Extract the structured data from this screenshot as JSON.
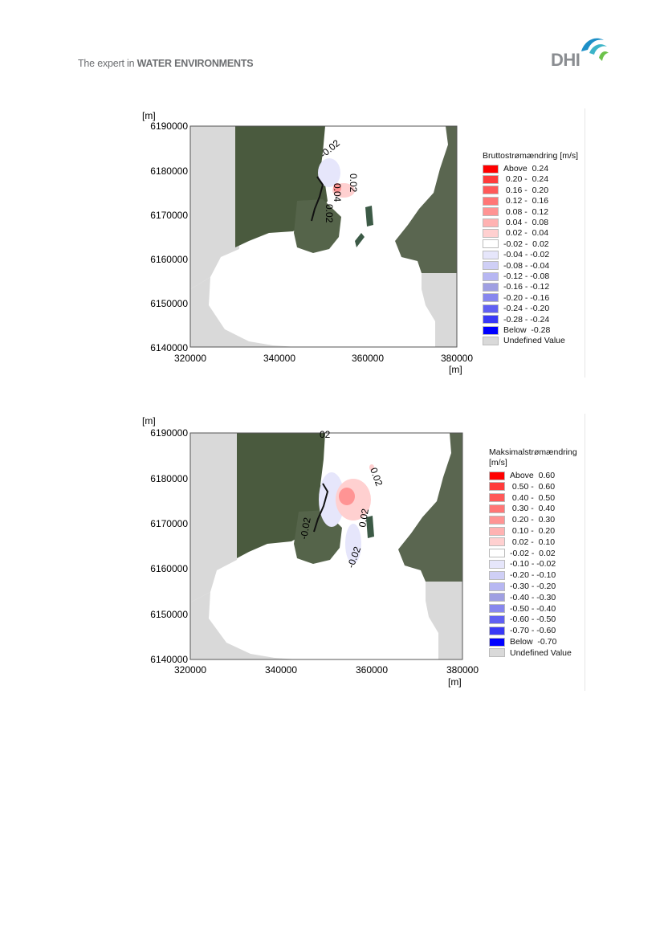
{
  "header": {
    "tagline_prefix": "The expert in ",
    "tagline_bold": "WATER ENVIRONMENTS",
    "logo_text": "DHI"
  },
  "colors": {
    "water": "#ffffff",
    "land_undefined": "#d9d9d9",
    "satellite_dark": "#3d4a35",
    "satellite_mid": "#5b6a4e"
  },
  "maps": [
    {
      "y_unit": "[m]",
      "x_unit": "[m]",
      "y_ticks": [
        "6190000",
        "6180000",
        "6170000",
        "6160000",
        "6150000",
        "6140000"
      ],
      "x_ticks": [
        "320000",
        "340000",
        "360000",
        "380000"
      ],
      "contour_labels": [
        "-0.02",
        "0.02",
        "0.04",
        "0.02"
      ],
      "legend": {
        "title_lines": [
          "Bruttostrømændring [m/s]"
        ],
        "items": [
          {
            "label": "Above  0.24",
            "color": "#ff0000"
          },
          {
            "label": " 0.20 -  0.24",
            "color": "#ff3b3b"
          },
          {
            "label": " 0.16 -  0.20",
            "color": "#ff5959"
          },
          {
            "label": " 0.12 -  0.16",
            "color": "#ff7676"
          },
          {
            "label": " 0.08 -  0.12",
            "color": "#ff9494"
          },
          {
            "label": " 0.04 -  0.08",
            "color": "#ffb2b2"
          },
          {
            "label": " 0.02 -  0.04",
            "color": "#ffd0d0"
          },
          {
            "label": "-0.02 -  0.02",
            "color": "#ffffff"
          },
          {
            "label": "-0.04 - -0.02",
            "color": "#e6e6fb"
          },
          {
            "label": "-0.08 - -0.04",
            "color": "#cfcff6"
          },
          {
            "label": "-0.12 - -0.08",
            "color": "#b7b7f2"
          },
          {
            "label": "-0.16 - -0.12",
            "color": "#9f9fe2"
          },
          {
            "label": "-0.20 - -0.16",
            "color": "#8787ee"
          },
          {
            "label": "-0.24 - -0.20",
            "color": "#6060f2"
          },
          {
            "label": "-0.28 - -0.24",
            "color": "#3939f6"
          },
          {
            "label": "Below  -0.28",
            "color": "#0000ff"
          },
          {
            "label": "Undefined Value",
            "color": "#d9d9d9"
          }
        ]
      }
    },
    {
      "y_unit": "[m]",
      "x_unit": "[m]",
      "y_ticks": [
        "6190000",
        "6180000",
        "6170000",
        "6160000",
        "6150000",
        "6140000"
      ],
      "x_ticks": [
        "320000",
        "340000",
        "360000",
        "380000"
      ],
      "contour_labels": [
        "02",
        "0.02",
        "0.02",
        "-0.02",
        "-0.02"
      ],
      "legend": {
        "title_lines": [
          "Maksimalstrømændring",
          "[m/s]"
        ],
        "items": [
          {
            "label": "Above  0.60",
            "color": "#ff0000"
          },
          {
            "label": " 0.50 -  0.60",
            "color": "#ff3b3b"
          },
          {
            "label": " 0.40 -  0.50",
            "color": "#ff5959"
          },
          {
            "label": " 0.30 -  0.40",
            "color": "#ff7676"
          },
          {
            "label": " 0.20 -  0.30",
            "color": "#ff9494"
          },
          {
            "label": " 0.10 -  0.20",
            "color": "#ffb2b2"
          },
          {
            "label": " 0.02 -  0.10",
            "color": "#ffd0d0"
          },
          {
            "label": "-0.02 -  0.02",
            "color": "#ffffff"
          },
          {
            "label": "-0.10 - -0.02",
            "color": "#e6e6fb"
          },
          {
            "label": "-0.20 - -0.10",
            "color": "#cfcff6"
          },
          {
            "label": "-0.30 - -0.20",
            "color": "#b7b7f2"
          },
          {
            "label": "-0.40 - -0.30",
            "color": "#9f9fe2"
          },
          {
            "label": "-0.50 - -0.40",
            "color": "#8787ee"
          },
          {
            "label": "-0.60 - -0.50",
            "color": "#6060f2"
          },
          {
            "label": "-0.70 - -0.60",
            "color": "#3939f6"
          },
          {
            "label": "Below  -0.70",
            "color": "#0000ff"
          },
          {
            "label": "Undefined Value",
            "color": "#d9d9d9"
          }
        ]
      }
    }
  ]
}
